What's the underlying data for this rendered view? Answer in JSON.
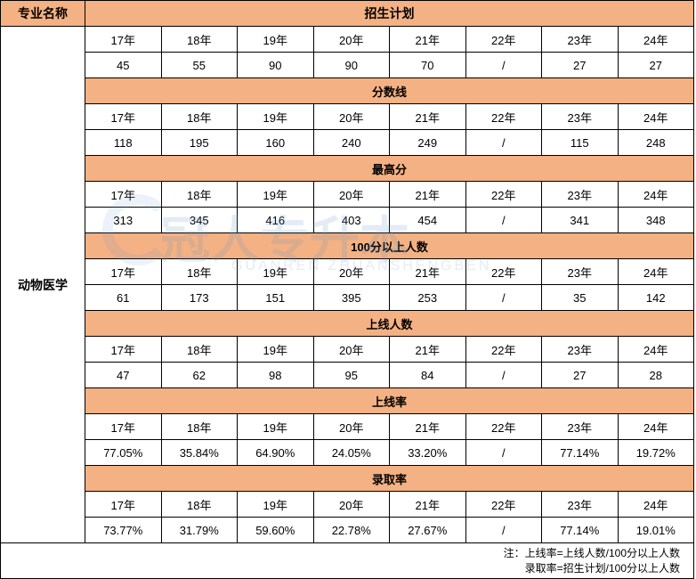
{
  "header": {
    "major_label": "专业名称",
    "plan_label": "招生计划"
  },
  "major_name": "动物医学",
  "years": [
    "17年",
    "18年",
    "19年",
    "20年",
    "21年",
    "22年",
    "23年",
    "24年"
  ],
  "sections": {
    "plan": {
      "title": "招生计划",
      "values": [
        "45",
        "55",
        "90",
        "90",
        "70",
        "/",
        "27",
        "27"
      ]
    },
    "score_line": {
      "title": "分数线",
      "values": [
        "118",
        "195",
        "160",
        "240",
        "249",
        "/",
        "115",
        "248"
      ]
    },
    "max_score": {
      "title": "最高分",
      "values": [
        "313",
        "345",
        "416",
        "403",
        "454",
        "/",
        "341",
        "348"
      ]
    },
    "over_100": {
      "title": "100分以上人数",
      "values": [
        "61",
        "173",
        "151",
        "395",
        "253",
        "/",
        "35",
        "142"
      ]
    },
    "online_count": {
      "title": "上线人数",
      "values": [
        "47",
        "62",
        "98",
        "95",
        "84",
        "/",
        "27",
        "28"
      ]
    },
    "online_rate": {
      "title": "上线率",
      "values": [
        "77.05%",
        "35.84%",
        "64.90%",
        "24.05%",
        "33.20%",
        "/",
        "77.14%",
        "19.72%"
      ]
    },
    "admit_rate": {
      "title": "录取率",
      "values": [
        "73.77%",
        "31.79%",
        "59.60%",
        "22.78%",
        "27.67%",
        "/",
        "77.14%",
        "19.01%"
      ]
    }
  },
  "footnote": {
    "line1": "注：上线率=上线人数/100分以上人数",
    "line2": "录取率=招生计划/100分以上人数"
  },
  "watermark": {
    "main": "冠人专升本",
    "sub": "GUANREN ZHUANSHENGBEN"
  },
  "colors": {
    "header_bg": "#f4b183",
    "border": "#000000",
    "text": "#000000",
    "watermark": "rgba(100, 150, 200, 0.18)"
  }
}
